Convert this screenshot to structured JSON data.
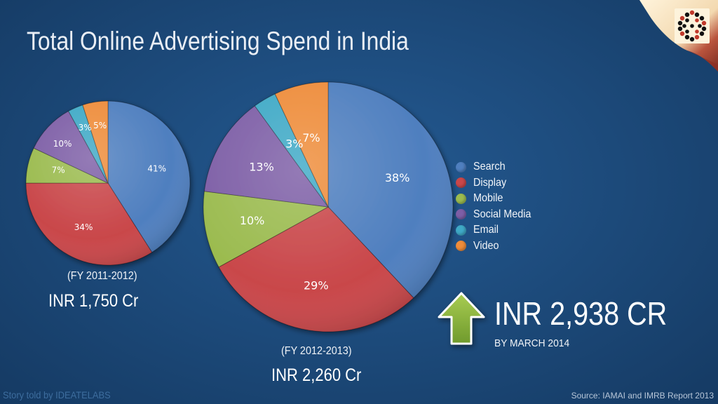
{
  "title": "Total Online Advertising Spend in India",
  "colors": {
    "search": "#4f7fbf",
    "display": "#c9474a",
    "mobile": "#9bbb4f",
    "social": "#7d5ea6",
    "email": "#3fa9c6",
    "video": "#ee8c3a",
    "arrow": "#8db43c"
  },
  "legend": [
    {
      "label": "Search",
      "color": "#4f7fbf"
    },
    {
      "label": "Display",
      "color": "#c9474a"
    },
    {
      "label": "Mobile",
      "color": "#9bbb4f"
    },
    {
      "label": "Social Media",
      "color": "#7d5ea6"
    },
    {
      "label": "Email",
      "color": "#3fa9c6"
    },
    {
      "label": "Video",
      "color": "#ee8c3a"
    }
  ],
  "chart_data": [
    {
      "type": "pie",
      "period": "(FY 2011-2012)",
      "total": "INR 1,750 Cr",
      "categories": [
        "Search",
        "Display",
        "Mobile",
        "Social Media",
        "Email",
        "Video"
      ],
      "values": [
        41,
        34,
        7,
        10,
        3,
        5
      ],
      "labels": [
        "41%",
        "34%",
        "7%",
        "10%",
        "3%",
        "5%"
      ]
    },
    {
      "type": "pie",
      "period": "(FY 2012-2013)",
      "total": "INR 2,260 Cr",
      "categories": [
        "Search",
        "Display",
        "Mobile",
        "Social Media",
        "Email",
        "Video"
      ],
      "values": [
        38,
        29,
        10,
        13,
        3,
        7
      ],
      "labels": [
        "38%",
        "29%",
        "10%",
        "13%",
        "3%",
        "7%"
      ]
    }
  ],
  "projection": {
    "amount": "INR 2,938 CR",
    "subtitle": "BY MARCH 2014",
    "icon": "up-arrow-icon"
  },
  "footer": {
    "credit": "Story told by IDEATELABS",
    "source": "Source: IAMAI and IMRB Report 2013"
  }
}
